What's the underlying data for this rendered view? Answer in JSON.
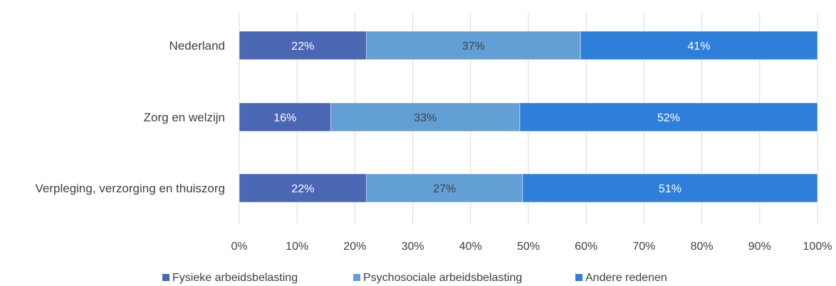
{
  "chart_data": {
    "type": "bar",
    "orientation": "horizontal",
    "stacked": "percent",
    "categories": [
      "Nederland",
      "Zorg en welzijn",
      "Verpleging, verzorging en thuiszorg"
    ],
    "series": [
      {
        "name": "Fysieke arbeidsbelasting",
        "values": [
          22,
          16,
          22
        ],
        "labels": [
          "22%",
          "16%",
          "22%"
        ],
        "color": "#4a67b4",
        "label_color": "#ffffff"
      },
      {
        "name": "Psychosociale arbeidsbelasting",
        "values": [
          37,
          33,
          27
        ],
        "labels": [
          "37%",
          "33%",
          "27%"
        ],
        "color": "#629fd5",
        "label_color": "#404040"
      },
      {
        "name": "Andere redenen",
        "values": [
          41,
          52,
          51
        ],
        "labels": [
          "41%",
          "52%",
          "51%"
        ],
        "color": "#2e7fd9",
        "label_color": "#ffffff"
      }
    ],
    "x_ticks": [
      "0%",
      "10%",
      "20%",
      "30%",
      "40%",
      "50%",
      "60%",
      "70%",
      "80%",
      "90%",
      "100%"
    ],
    "xlim": [
      0,
      100
    ],
    "grid": true,
    "legend_position": "bottom"
  }
}
